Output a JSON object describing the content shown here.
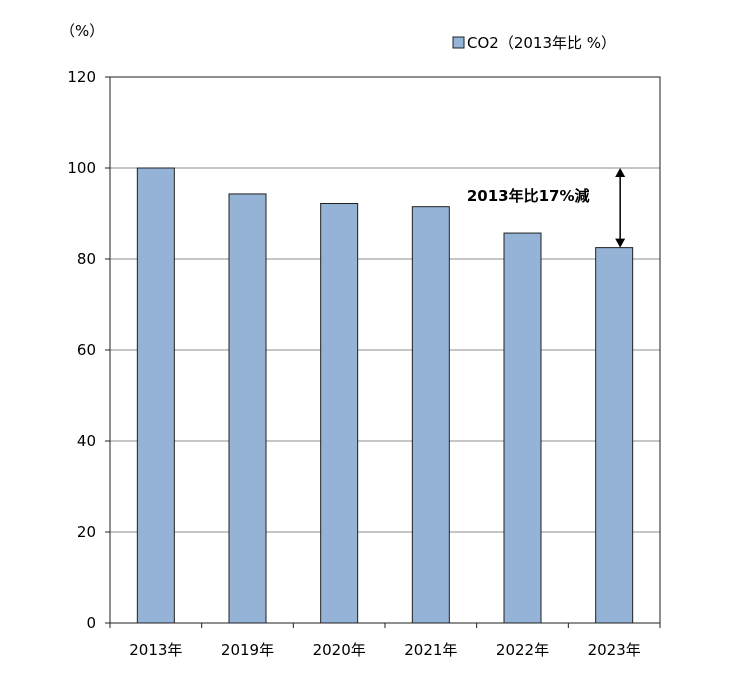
{
  "chart_data": {
    "type": "bar",
    "categories": [
      "2013年",
      "2019年",
      "2020年",
      "2021年",
      "2022年",
      "2023年"
    ],
    "series": [
      {
        "name": "CO2（2013年比 %）",
        "values": [
          100,
          94.3,
          92.2,
          91.5,
          85.7,
          82.5
        ],
        "color": "#95B3D7"
      }
    ],
    "ylabel": "（%）",
    "ylim": [
      0,
      120
    ],
    "yticks": [
      0,
      20,
      40,
      60,
      80,
      100,
      120
    ],
    "grid": true,
    "legend": "top-right",
    "annotation": {
      "text": "2013年比17%減",
      "from_value": 100,
      "to_value": 82.5,
      "category": "2023年"
    },
    "colors": {
      "bar": "#95B3D7",
      "bar_edge": "#1F1F1F",
      "grid": "#8C8C8C",
      "axis": "#1F1F1F"
    }
  }
}
